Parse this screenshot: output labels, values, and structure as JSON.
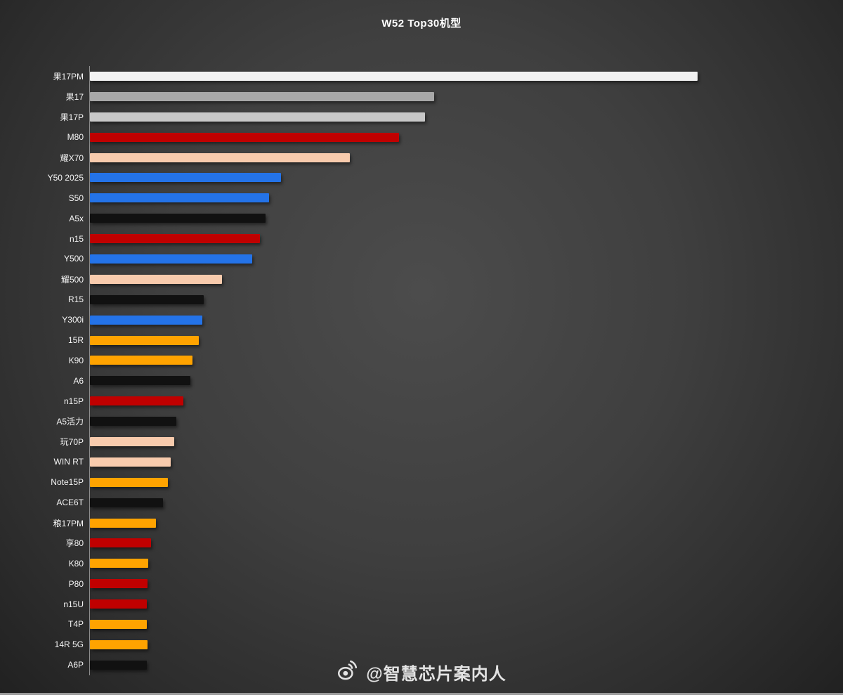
{
  "page": {
    "title": "W52 Top30机型"
  },
  "watermark": {
    "handle": "@智慧芯片案内人",
    "icon": "weibo-icon"
  },
  "colors": {
    "background_center": "#4c4c4c",
    "background_edge": "#212121",
    "axis_line": "#8f8f8f",
    "title_text": "#ffffff",
    "label_text": "#f5f5f5",
    "watermark_text": "#e3e3e3",
    "palette": {
      "white": "#f2f2f2",
      "gray": "#a8a8a8",
      "silver": "#c8c8c8",
      "red": "#c00000",
      "peach": "#f8cbad",
      "blue": "#2473e8",
      "black": "#111111",
      "orange": "#ffa300"
    }
  },
  "chart_data": {
    "type": "bar",
    "orientation": "horizontal",
    "title": "W52 Top30机型",
    "xlabel": "",
    "ylabel": "",
    "grid": false,
    "legend": false,
    "axis_value_labels_visible": false,
    "xlim": [
      0,
      100
    ],
    "unit": "relative bar length, longest bar = 100 (no numeric axis shown in image)",
    "categories": [
      "果17PM",
      "果17",
      "果17P",
      "M80",
      "耀X70",
      "Y50 2025",
      "S50",
      "A5x",
      "n15",
      "Y500",
      "耀500",
      "R15",
      "Y300i",
      "15R",
      "K90",
      "A6",
      "n15P",
      "A5活力",
      "玩70P",
      "WIN RT",
      "Note15P",
      "ACE6T",
      "粮17PM",
      "享80",
      "K80",
      "P80",
      "n15U",
      "T4P",
      "14R 5G",
      "A6P"
    ],
    "values": [
      100,
      56.6,
      55.1,
      50.9,
      42.8,
      31.4,
      29.5,
      28.9,
      28.0,
      26.7,
      21.7,
      18.7,
      18.5,
      17.9,
      16.9,
      16.5,
      15.4,
      14.2,
      13.9,
      13.3,
      12.8,
      12.0,
      10.9,
      10.1,
      9.6,
      9.5,
      9.4,
      9.4,
      9.5,
      9.4
    ],
    "bar_colors": [
      "#f2f2f2",
      "#a8a8a8",
      "#c8c8c8",
      "#c00000",
      "#f8cbad",
      "#2473e8",
      "#2473e8",
      "#111111",
      "#c00000",
      "#2473e8",
      "#f8cbad",
      "#111111",
      "#2473e8",
      "#ffa300",
      "#ffa300",
      "#111111",
      "#c00000",
      "#111111",
      "#f8cbad",
      "#f8cbad",
      "#ffa300",
      "#111111",
      "#ffa300",
      "#c00000",
      "#ffa300",
      "#c00000",
      "#c00000",
      "#ffa300",
      "#ffa300",
      "#111111"
    ]
  }
}
